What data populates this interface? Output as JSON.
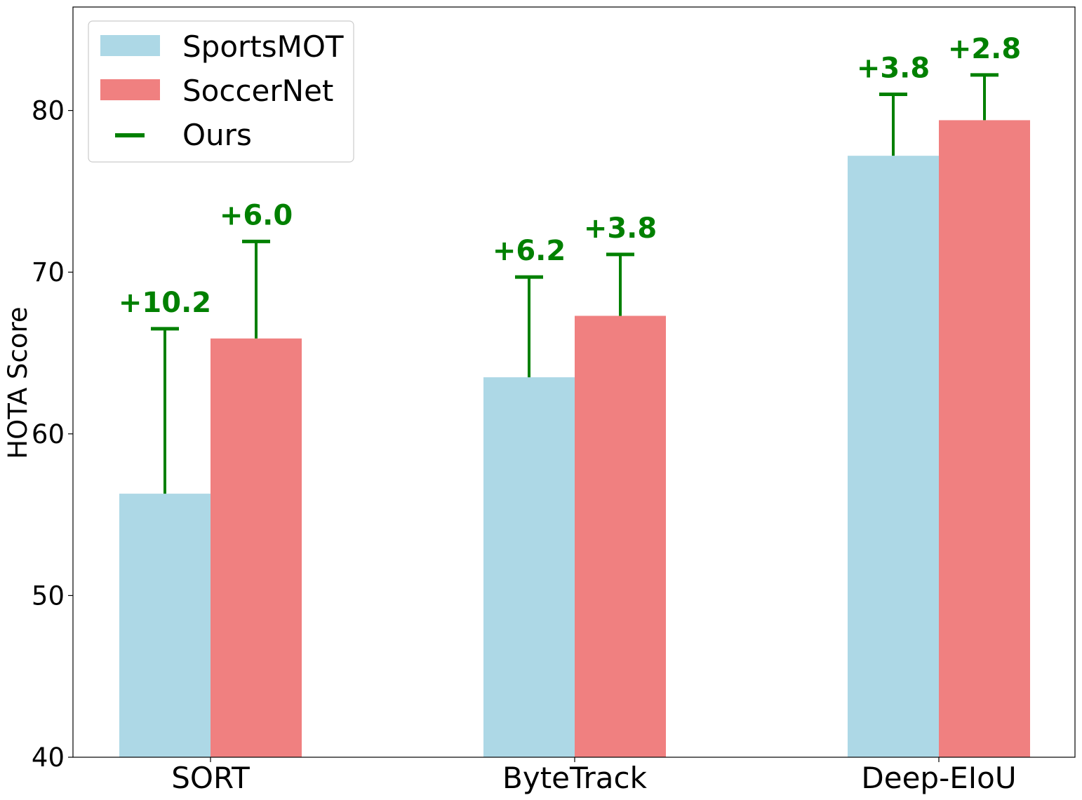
{
  "chart_data": {
    "type": "bar",
    "categories": [
      "SORT",
      "ByteTrack",
      "Deep-EIoU"
    ],
    "series": [
      {
        "name": "SportsMOT",
        "values": [
          56.3,
          63.5,
          77.2
        ],
        "color": "#add8e6"
      },
      {
        "name": "SoccerNet",
        "values": [
          65.9,
          67.3,
          79.4
        ],
        "color": "#f08080"
      }
    ],
    "ours": {
      "name": "Ours",
      "color": "#008000",
      "values": [
        [
          66.5,
          71.9
        ],
        [
          69.7,
          71.1
        ],
        [
          81.0,
          82.2
        ]
      ],
      "labels": [
        [
          "+10.2",
          "+6.0"
        ],
        [
          "+6.2",
          "+3.8"
        ],
        [
          "+3.8",
          "+2.8"
        ]
      ]
    },
    "ylabel": "HOTA Score",
    "xlabel": "",
    "ylim": [
      40,
      86.4
    ],
    "yticks": [
      40,
      50,
      60,
      70,
      80
    ],
    "grid": false,
    "legend": "top-left"
  }
}
